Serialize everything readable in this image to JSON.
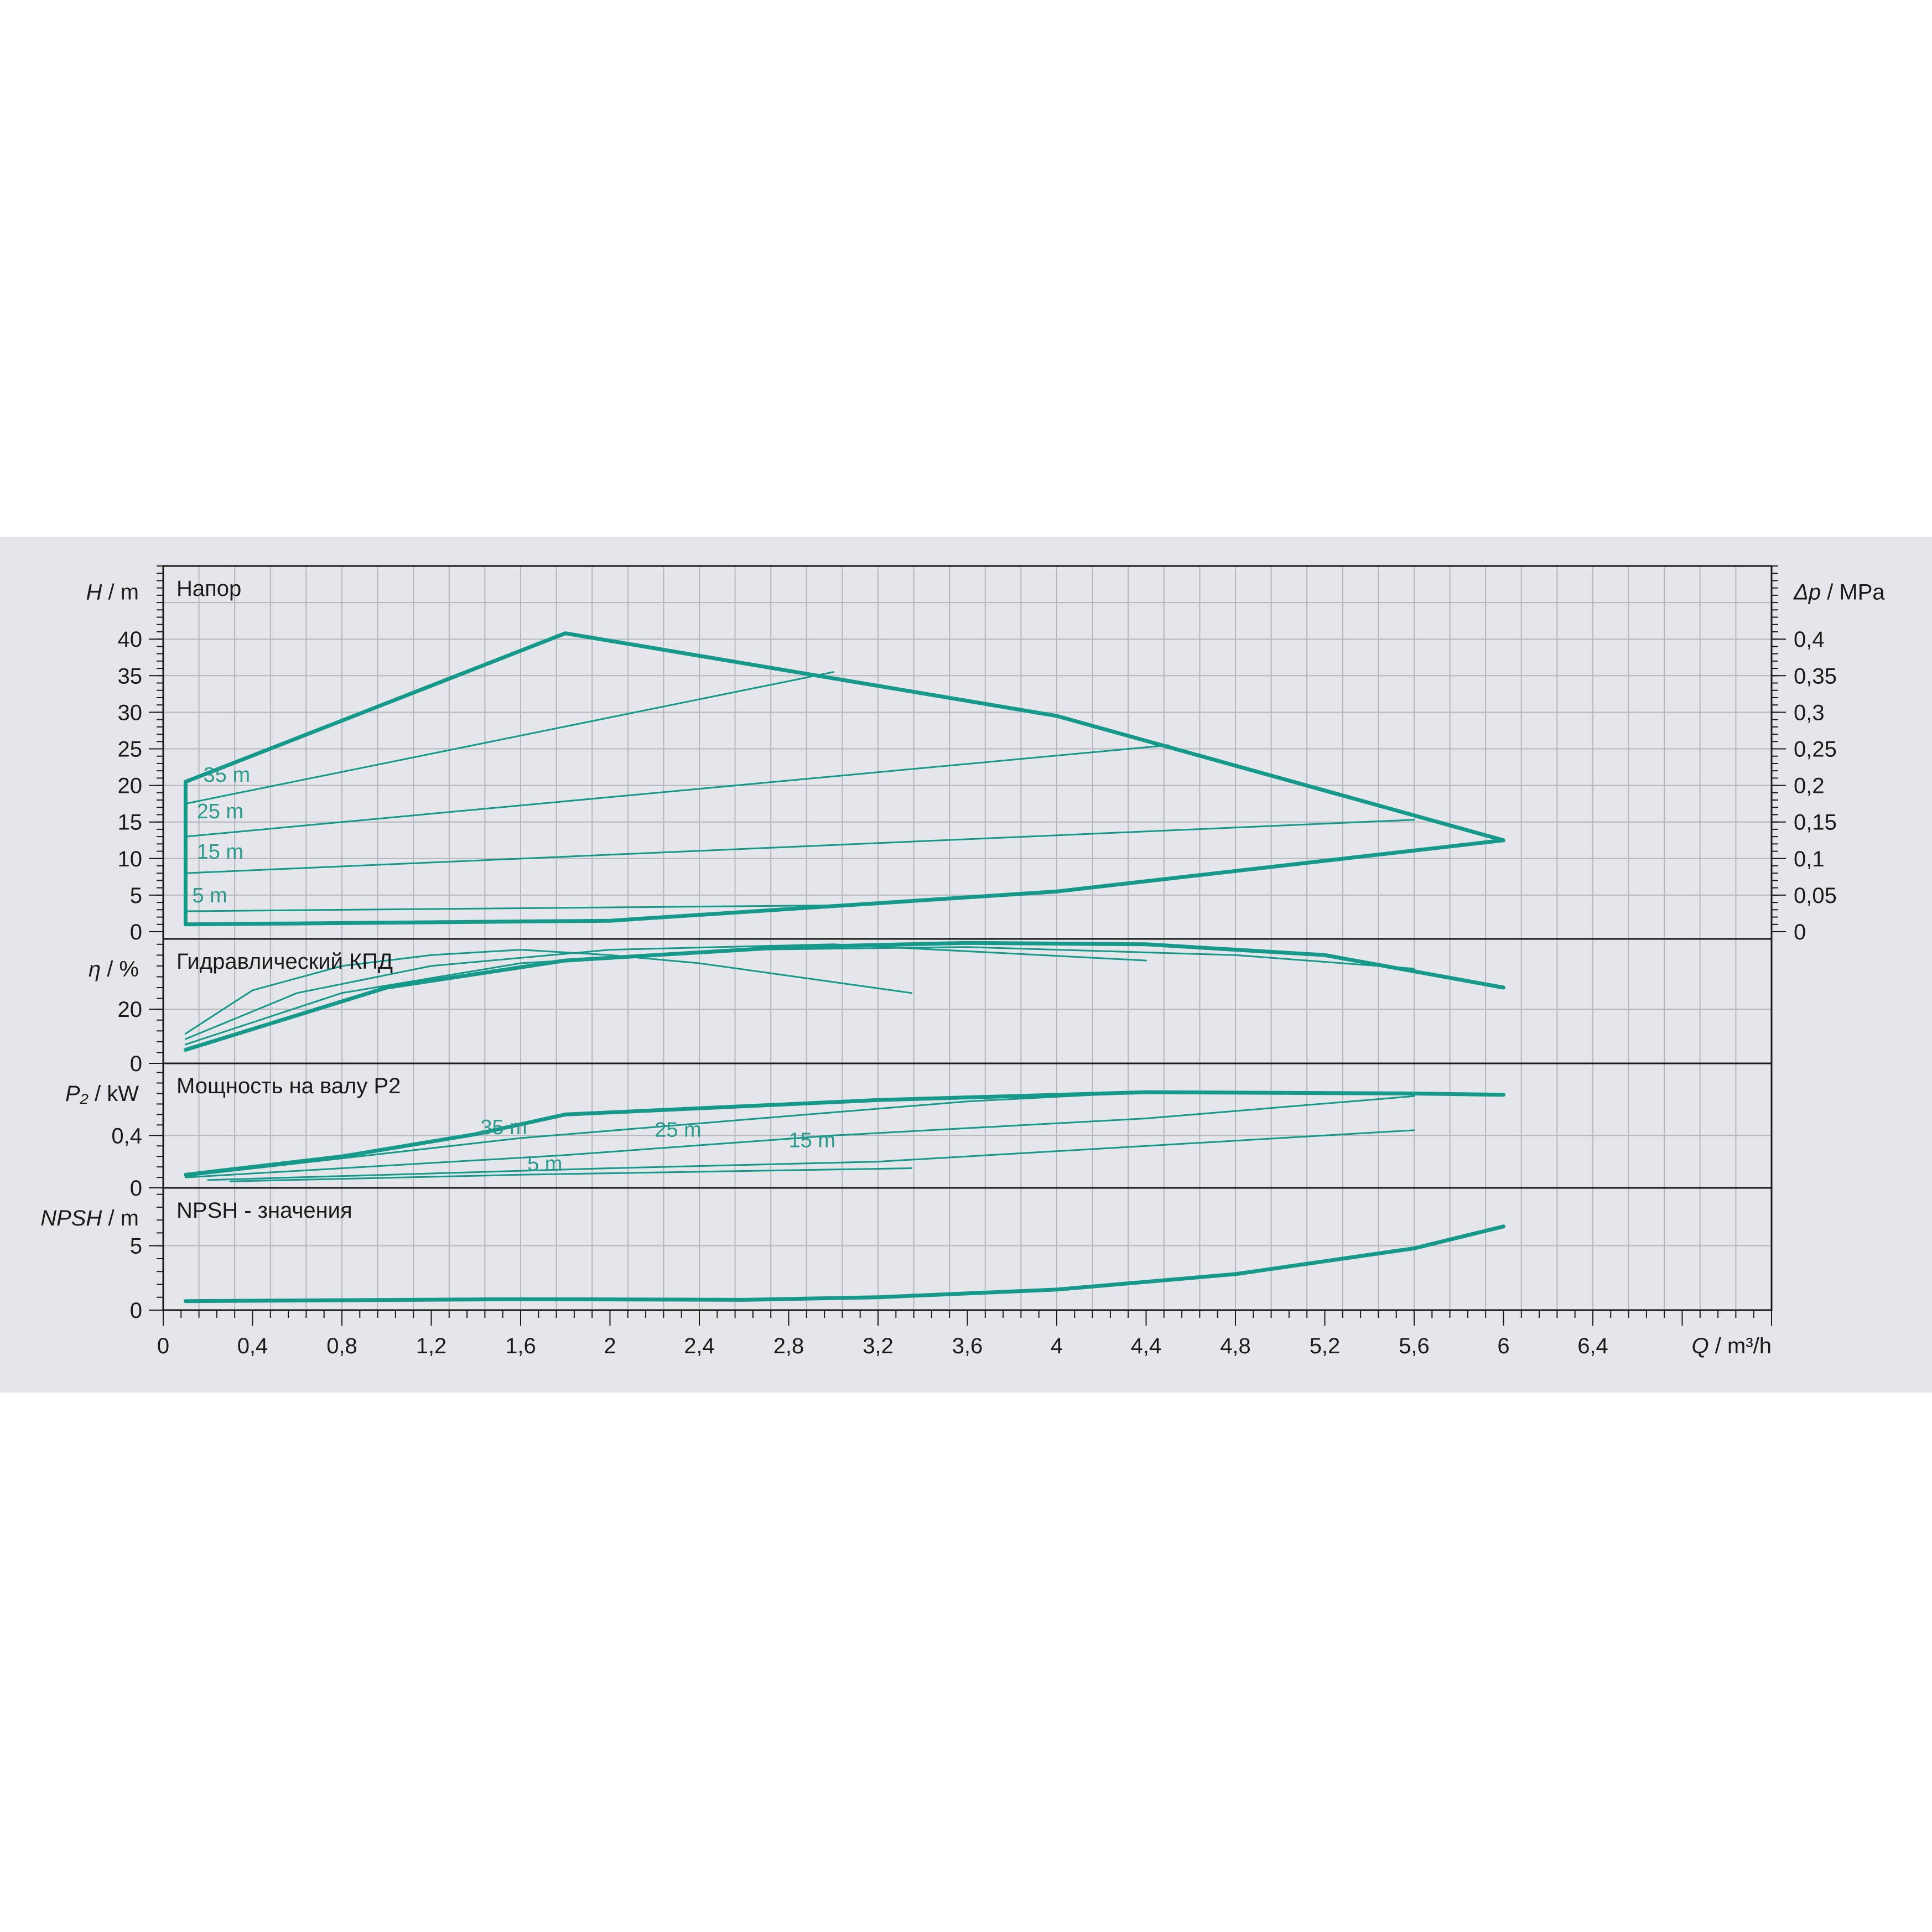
{
  "colors": {
    "curve": "#14998a",
    "grid": "#b4b7bc",
    "frame": "#1a1a1a",
    "background": "#e4e6ea"
  },
  "chart_data": {
    "type": "line",
    "x_axis": {
      "label_var": "Q",
      "label_unit": "/ m³/h",
      "range": [
        0,
        7.2
      ],
      "ticks": [
        "0",
        "0,4",
        "0,8",
        "1,2",
        "1,6",
        "2",
        "2,4",
        "2,8",
        "3,2",
        "3,6",
        "4",
        "4,4",
        "4,8",
        "5,2",
        "5,6",
        "6",
        "6,4"
      ]
    },
    "panels": [
      {
        "id": "head",
        "title": "Напор",
        "y_label_var": "H",
        "y_label_unit": "/ m",
        "y_range": [
          0,
          50
        ],
        "y_ticks": [
          {
            "v": 0,
            "t": "0"
          },
          {
            "v": 5,
            "t": "5"
          },
          {
            "v": 10,
            "t": "10"
          },
          {
            "v": 15,
            "t": "15"
          },
          {
            "v": 20,
            "t": "20"
          },
          {
            "v": 25,
            "t": "25"
          },
          {
            "v": 30,
            "t": "30"
          },
          {
            "v": 35,
            "t": "35"
          },
          {
            "v": 40,
            "t": "40"
          }
        ],
        "y2_label_var": "Δp",
        "y2_label_unit": "/ MPa",
        "y2_ticks": [
          {
            "v": 0,
            "t": "0"
          },
          {
            "v": 5,
            "t": "0,05"
          },
          {
            "v": 10,
            "t": "0,1"
          },
          {
            "v": 15,
            "t": "0,15"
          },
          {
            "v": 20,
            "t": "0,2"
          },
          {
            "v": 25,
            "t": "0,25"
          },
          {
            "v": 30,
            "t": "0,3"
          },
          {
            "v": 35,
            "t": "0,35"
          },
          {
            "v": 40,
            "t": "0,4"
          }
        ],
        "series": [
          {
            "thick": true,
            "points": [
              [
                0.1,
                20.5
              ],
              [
                1.8,
                40.8
              ],
              [
                4.0,
                29.5
              ],
              [
                6.0,
                12.5
              ],
              [
                4.0,
                5.5
              ],
              [
                2.0,
                1.5
              ],
              [
                0.1,
                1.0
              ],
              [
                0.1,
                20.5
              ]
            ]
          },
          {
            "points": [
              [
                0.1,
                17.5
              ],
              [
                3.0,
                35.5
              ]
            ]
          },
          {
            "points": [
              [
                0.1,
                13.0
              ],
              [
                4.5,
                25.5
              ]
            ]
          },
          {
            "points": [
              [
                0.1,
                8.0
              ],
              [
                5.6,
                15.3
              ]
            ]
          },
          {
            "points": [
              [
                0.1,
                2.8
              ],
              [
                3.0,
                3.6
              ]
            ]
          }
        ],
        "annotations": [
          {
            "text": "35 m",
            "x": 0.18,
            "y": 20.5
          },
          {
            "text": "25 m",
            "x": 0.15,
            "y": 15.5
          },
          {
            "text": "15 m",
            "x": 0.15,
            "y": 10.0
          },
          {
            "text": "5 m",
            "x": 0.13,
            "y": 4.0
          }
        ]
      },
      {
        "id": "efficiency",
        "title": "Гидравлический КПД",
        "y_label_var": "η",
        "y_label_unit": "/ %",
        "y_range": [
          0,
          46
        ],
        "y_ticks": [
          {
            "v": 0,
            "t": "0"
          },
          {
            "v": 20,
            "t": "20"
          }
        ],
        "series": [
          {
            "points": [
              [
                0.1,
                11
              ],
              [
                0.4,
                27
              ],
              [
                0.8,
                36
              ],
              [
                1.2,
                40
              ],
              [
                1.6,
                42
              ],
              [
                2.0,
                40
              ],
              [
                2.4,
                37
              ],
              [
                3.35,
                26
              ]
            ]
          },
          {
            "points": [
              [
                0.1,
                9
              ],
              [
                0.6,
                26
              ],
              [
                1.2,
                36
              ],
              [
                2.0,
                42
              ],
              [
                3.0,
                44
              ],
              [
                4.4,
                38
              ]
            ]
          },
          {
            "points": [
              [
                0.1,
                7
              ],
              [
                0.8,
                26
              ],
              [
                1.6,
                37
              ],
              [
                2.6,
                42
              ],
              [
                3.6,
                43
              ],
              [
                4.8,
                40
              ],
              [
                5.6,
                35
              ]
            ]
          },
          {
            "thick": true,
            "points": [
              [
                0.1,
                5
              ],
              [
                1.0,
                28
              ],
              [
                1.8,
                38
              ],
              [
                2.8,
                43
              ],
              [
                3.6,
                44.5
              ],
              [
                4.4,
                44
              ],
              [
                5.2,
                40
              ],
              [
                6.0,
                28
              ]
            ]
          }
        ]
      },
      {
        "id": "power",
        "title": "Мощность на валу P2",
        "y_label_var": "P₂",
        "y_label_unit": "/ kW",
        "y_range": [
          0,
          0.95
        ],
        "y_ticks": [
          {
            "v": 0,
            "t": "0"
          },
          {
            "v": 0.4,
            "t": "0,4"
          }
        ],
        "series": [
          {
            "thick": true,
            "points": [
              [
                0.1,
                0.1
              ],
              [
                0.8,
                0.24
              ],
              [
                1.4,
                0.41
              ],
              [
                1.8,
                0.56
              ],
              [
                3.2,
                0.67
              ],
              [
                4.4,
                0.73
              ],
              [
                5.6,
                0.72
              ],
              [
                6.0,
                0.71
              ]
            ]
          },
          {
            "points": [
              [
                0.1,
                0.09
              ],
              [
                1.6,
                0.38
              ],
              [
                2.6,
                0.52
              ],
              [
                3.6,
                0.66
              ],
              [
                4.4,
                0.73
              ]
            ]
          },
          {
            "points": [
              [
                0.1,
                0.08
              ],
              [
                1.8,
                0.25
              ],
              [
                3.0,
                0.4
              ],
              [
                4.4,
                0.53
              ],
              [
                5.6,
                0.7
              ]
            ]
          },
          {
            "points": [
              [
                0.2,
                0.06
              ],
              [
                2.0,
                0.15
              ],
              [
                3.2,
                0.2
              ],
              [
                4.4,
                0.32
              ],
              [
                5.6,
                0.44
              ]
            ]
          },
          {
            "points": [
              [
                0.3,
                0.05
              ],
              [
                1.6,
                0.1
              ],
              [
                3.35,
                0.15
              ]
            ]
          }
        ],
        "annotations": [
          {
            "text": "35 m",
            "x": 1.42,
            "y": 0.41
          },
          {
            "text": "25 m",
            "x": 2.2,
            "y": 0.39
          },
          {
            "text": "15 m",
            "x": 2.8,
            "y": 0.31
          },
          {
            "text": "5 m",
            "x": 1.63,
            "y": 0.13
          }
        ]
      },
      {
        "id": "npsh",
        "title": "NPSH - значения",
        "y_label_var": "NPSH",
        "y_label_unit": "/ m",
        "y_range": [
          0,
          9.5
        ],
        "y_ticks": [
          {
            "v": 0,
            "t": "0"
          },
          {
            "v": 5,
            "t": "5"
          }
        ],
        "series": [
          {
            "thick": true,
            "points": [
              [
                0.1,
                0.7
              ],
              [
                1.6,
                0.85
              ],
              [
                2.6,
                0.8
              ],
              [
                3.2,
                1.0
              ],
              [
                4.0,
                1.6
              ],
              [
                4.8,
                2.8
              ],
              [
                5.6,
                4.8
              ],
              [
                6.0,
                6.5
              ]
            ]
          }
        ]
      }
    ]
  }
}
